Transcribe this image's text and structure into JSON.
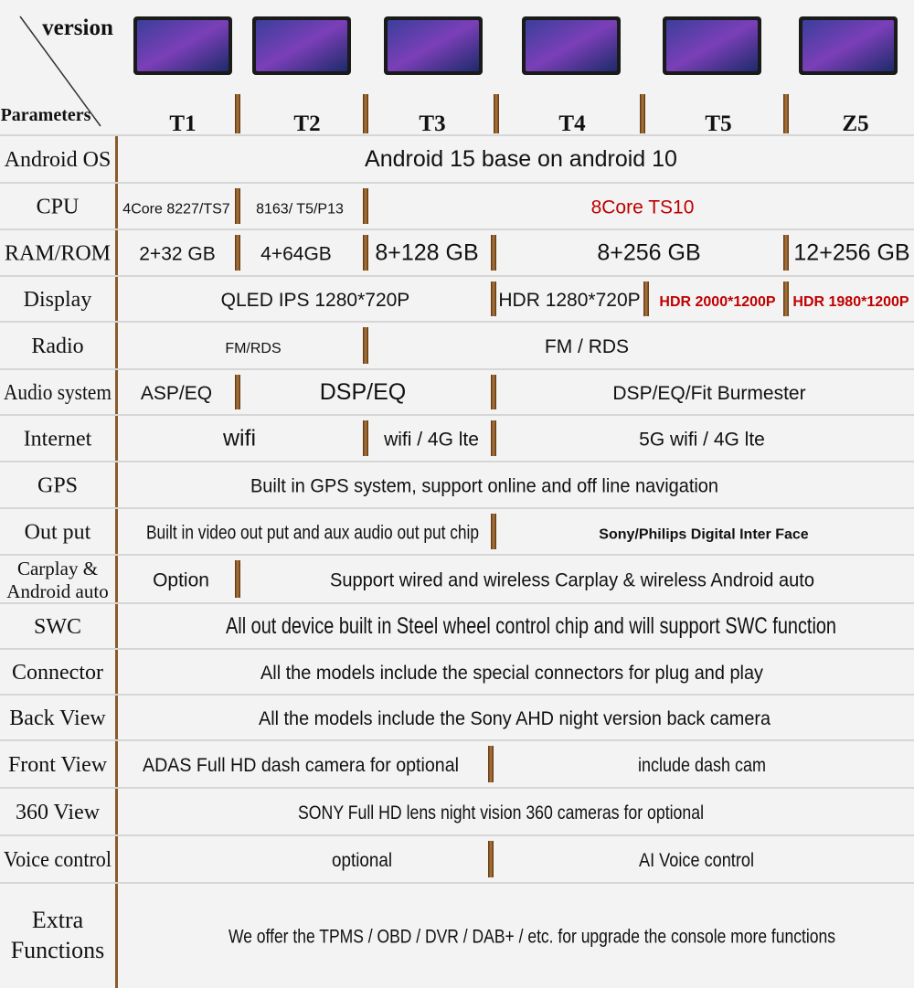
{
  "header": {
    "corner_top": "version",
    "corner_bottom": "Parameters",
    "models": [
      "T1",
      "T2",
      "T3",
      "T4",
      "T5",
      "Z5"
    ]
  },
  "rows": [
    {
      "label": [
        "Android OS"
      ],
      "cells": [
        "Android 15 base on android 10"
      ]
    },
    {
      "label": [
        "CPU"
      ],
      "cells": [
        "4Core 8227/TS7",
        "8163/ T5/P13",
        "8Core TS10"
      ]
    },
    {
      "label": [
        "RAM/ROM"
      ],
      "cells": [
        "2+32 GB",
        "4+64GB",
        "8+128 GB",
        "8+256 GB",
        "12+256 GB"
      ]
    },
    {
      "label": [
        "Display"
      ],
      "cells": [
        "QLED IPS 1280*720P",
        "HDR 1280*720P",
        "HDR 2000*1200P",
        "HDR 1980*1200P"
      ]
    },
    {
      "label": [
        "Radio"
      ],
      "cells": [
        "FM/RDS",
        "FM / RDS"
      ]
    },
    {
      "label": [
        "Audio system"
      ],
      "cells": [
        "ASP/EQ",
        "DSP/EQ",
        "DSP/EQ/Fit Burmester"
      ]
    },
    {
      "label": [
        "Internet"
      ],
      "cells": [
        "wifi",
        "wifi / 4G lte",
        "5G wifi / 4G lte"
      ]
    },
    {
      "label": [
        "GPS"
      ],
      "cells": [
        "Built in GPS system, support online and off line navigation"
      ]
    },
    {
      "label": [
        "Out put"
      ],
      "cells": [
        "Built in video out put and aux audio out put chip",
        "Sony/Philips Digital Inter Face"
      ]
    },
    {
      "label": [
        "Carplay &",
        "Android  auto"
      ],
      "cells": [
        "Option",
        "Support wired and wireless Carplay & wireless Android auto"
      ]
    },
    {
      "label": [
        "SWC"
      ],
      "cells": [
        "All out device built in Steel wheel control chip and will support SWC function"
      ]
    },
    {
      "label": [
        "Connector"
      ],
      "cells": [
        "All the models include the special connectors for plug and play"
      ]
    },
    {
      "label": [
        "Back View"
      ],
      "cells": [
        "All the models include the Sony AHD night version back camera"
      ]
    },
    {
      "label": [
        "Front View"
      ],
      "cells": [
        "ADAS Full HD dash camera for optional",
        "include dash cam"
      ]
    },
    {
      "label": [
        "360 View"
      ],
      "cells": [
        "SONY Full HD lens night vision 360 cameras for optional"
      ]
    },
    {
      "label": [
        "Voice control"
      ],
      "cells": [
        "optional",
        "AI Voice control"
      ]
    },
    {
      "label": [
        "Extra",
        "Functions"
      ],
      "cells": [
        "We offer the TPMS / OBD / DVR / DAB+ / etc. for upgrade the console more functions"
      ]
    }
  ]
}
